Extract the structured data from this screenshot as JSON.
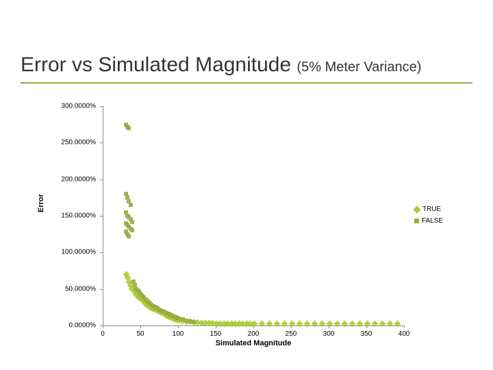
{
  "title": {
    "main": "Error vs Simulated Magnitude ",
    "sub": "(5% Meter Variance)"
  },
  "chart": {
    "type": "scatter",
    "xlabel": "Simulated Magnitude",
    "ylabel": "Error",
    "xlim": [
      0,
      400
    ],
    "ylim": [
      0,
      300
    ],
    "xticks": [
      0,
      50,
      100,
      150,
      200,
      250,
      300,
      350,
      400
    ],
    "yticks": [
      {
        "v": 0,
        "label": "0.0000%"
      },
      {
        "v": 50,
        "label": "50.0000%"
      },
      {
        "v": 100,
        "label": "100.0000%"
      },
      {
        "v": 150,
        "label": "150.0000%"
      },
      {
        "v": 200,
        "label": "200.0000%"
      },
      {
        "v": 250,
        "label": "250.0000%"
      },
      {
        "v": 300,
        "label": "300.0000%"
      }
    ],
    "background_color": "#ffffff",
    "axis_color": "#888888",
    "series": [
      {
        "label": "TRUE",
        "marker": "diamond",
        "color": "#aacc33",
        "points": [
          [
            30,
            70
          ],
          [
            32,
            65
          ],
          [
            34,
            60
          ],
          [
            36,
            55
          ],
          [
            38,
            50
          ],
          [
            40,
            48
          ],
          [
            42,
            45
          ],
          [
            44,
            42
          ],
          [
            46,
            40
          ],
          [
            48,
            38
          ],
          [
            50,
            36
          ],
          [
            52,
            34
          ],
          [
            54,
            32
          ],
          [
            56,
            30
          ],
          [
            58,
            28
          ],
          [
            60,
            26
          ],
          [
            62,
            25
          ],
          [
            64,
            24
          ],
          [
            66,
            23
          ],
          [
            68,
            22
          ],
          [
            70,
            21
          ],
          [
            72,
            20
          ],
          [
            74,
            19
          ],
          [
            76,
            18
          ],
          [
            78,
            17
          ],
          [
            80,
            16
          ],
          [
            82,
            15
          ],
          [
            84,
            14
          ],
          [
            86,
            13
          ],
          [
            88,
            12
          ],
          [
            90,
            11
          ],
          [
            92,
            10
          ],
          [
            94,
            9
          ],
          [
            96,
            8
          ],
          [
            98,
            8
          ],
          [
            100,
            7
          ],
          [
            105,
            6
          ],
          [
            110,
            5
          ],
          [
            115,
            5
          ],
          [
            120,
            4
          ],
          [
            125,
            4
          ],
          [
            130,
            3
          ],
          [
            135,
            3
          ],
          [
            140,
            3
          ],
          [
            145,
            3
          ],
          [
            150,
            2
          ],
          [
            155,
            2
          ],
          [
            160,
            2
          ],
          [
            165,
            2
          ],
          [
            170,
            2
          ],
          [
            175,
            2
          ],
          [
            180,
            2
          ],
          [
            185,
            2
          ],
          [
            190,
            2
          ],
          [
            195,
            2
          ],
          [
            200,
            2
          ],
          [
            210,
            2
          ],
          [
            220,
            2
          ],
          [
            230,
            2
          ],
          [
            240,
            2
          ],
          [
            250,
            2
          ],
          [
            260,
            2
          ],
          [
            270,
            2
          ],
          [
            280,
            2
          ],
          [
            290,
            2
          ],
          [
            300,
            2
          ],
          [
            310,
            2
          ],
          [
            320,
            2
          ],
          [
            330,
            2
          ],
          [
            340,
            2
          ],
          [
            350,
            2
          ],
          [
            360,
            2
          ],
          [
            370,
            2
          ],
          [
            380,
            2
          ],
          [
            390,
            2
          ]
        ]
      },
      {
        "label": "FALSE",
        "marker": "square",
        "color": "#99aa44",
        "points": [
          [
            30,
            275
          ],
          [
            32,
            272
          ],
          [
            34,
            270
          ],
          [
            30,
            180
          ],
          [
            32,
            175
          ],
          [
            34,
            170
          ],
          [
            36,
            165
          ],
          [
            30,
            155
          ],
          [
            32,
            150
          ],
          [
            34,
            148
          ],
          [
            36,
            145
          ],
          [
            38,
            142
          ],
          [
            30,
            140
          ],
          [
            32,
            138
          ],
          [
            34,
            135
          ],
          [
            36,
            132
          ],
          [
            38,
            130
          ],
          [
            30,
            128
          ],
          [
            32,
            125
          ],
          [
            34,
            122
          ],
          [
            40,
            60
          ],
          [
            42,
            55
          ],
          [
            44,
            50
          ],
          [
            46,
            48
          ],
          [
            48,
            45
          ],
          [
            50,
            42
          ],
          [
            52,
            40
          ],
          [
            54,
            38
          ],
          [
            56,
            36
          ],
          [
            58,
            34
          ],
          [
            60,
            32
          ],
          [
            62,
            30
          ],
          [
            64,
            28
          ],
          [
            66,
            26
          ],
          [
            68,
            25
          ],
          [
            70,
            24
          ],
          [
            72,
            23
          ],
          [
            74,
            22
          ],
          [
            76,
            21
          ],
          [
            78,
            20
          ],
          [
            80,
            19
          ],
          [
            82,
            18
          ],
          [
            84,
            17
          ],
          [
            86,
            16
          ],
          [
            88,
            15
          ],
          [
            90,
            14
          ],
          [
            92,
            13
          ],
          [
            94,
            12
          ],
          [
            96,
            11
          ],
          [
            98,
            10
          ],
          [
            100,
            9
          ],
          [
            105,
            8
          ],
          [
            110,
            7
          ],
          [
            115,
            6
          ],
          [
            120,
            5
          ]
        ]
      }
    ]
  }
}
